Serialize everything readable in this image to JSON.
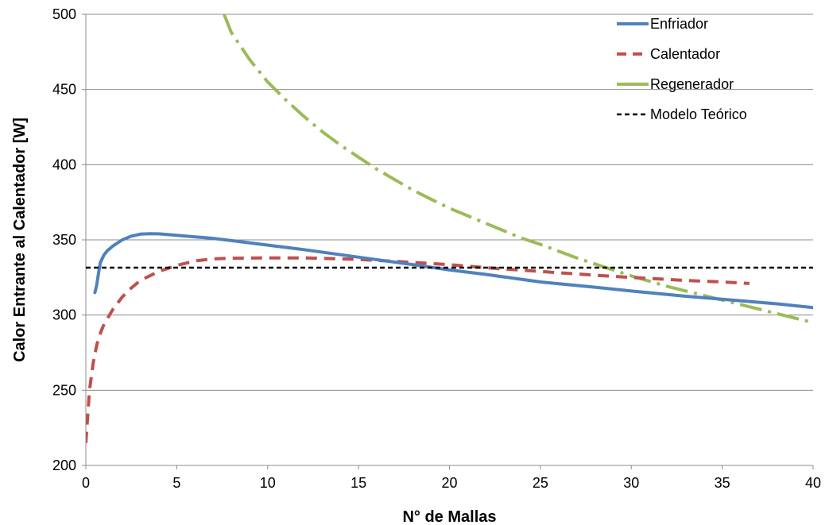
{
  "chart_data": {
    "type": "line",
    "title": "",
    "xlabel": "N° de Mallas",
    "ylabel": "Calor Entrante al Calentador [W]",
    "xlim": [
      0,
      40
    ],
    "ylim": [
      200,
      500
    ],
    "xticks": [
      0,
      5,
      10,
      15,
      20,
      25,
      30,
      35,
      40
    ],
    "yticks": [
      200,
      250,
      300,
      350,
      400,
      450,
      500
    ],
    "grid": "horizontal",
    "legend_position": "top-right",
    "series": [
      {
        "name": "Enfriador",
        "color": "#4F81BD",
        "style": "solid",
        "x": [
          0.5,
          0.6,
          0.7,
          0.8,
          1.0,
          1.2,
          1.5,
          2.0,
          2.5,
          3.0,
          3.5,
          4.0,
          5.0,
          6.0,
          7.0,
          8.0,
          10.0,
          12.0,
          15.0,
          18.0,
          20.0,
          22.0,
          25.0,
          28.0,
          30.0,
          33.0,
          35.0,
          38.0,
          40.0
        ],
        "y": [
          315,
          320,
          328,
          335,
          340,
          343,
          346,
          350,
          352.5,
          353.8,
          354.1,
          354,
          353,
          352,
          351,
          349.5,
          346.5,
          343.5,
          338.5,
          333.5,
          330,
          327,
          322,
          318.5,
          316,
          312.5,
          310.5,
          307.5,
          305
        ]
      },
      {
        "name": "Calentador",
        "color": "#C0504D",
        "style": "dashed",
        "x": [
          0.0,
          0.2,
          0.4,
          0.6,
          0.8,
          1.0,
          1.5,
          2.0,
          2.5,
          3.0,
          3.5,
          4.0,
          5.0,
          6.0,
          7.0,
          8.0,
          10.0,
          12.0,
          15.0,
          18.0,
          20.0,
          22.0,
          25.0,
          28.0,
          30.0,
          33.0,
          35.0,
          36.5
        ],
        "y": [
          215,
          250,
          268,
          280,
          288,
          294,
          304,
          312,
          318,
          323,
          326,
          329,
          333,
          336,
          337.3,
          337.8,
          338,
          338,
          337,
          335,
          333.5,
          331.5,
          329,
          326.5,
          325,
          323,
          322,
          321
        ]
      },
      {
        "name": "Regenerador",
        "color": "#9BBB59",
        "style": "dashdot",
        "x": [
          7.6,
          8.0,
          9.0,
          10.0,
          11.0,
          12.0,
          13.0,
          14.0,
          15.0,
          16.0,
          17.0,
          18.0,
          19.0,
          20.0,
          21.0,
          22.0,
          23.0,
          24.0,
          25.0,
          26.0,
          27.0,
          28.0,
          29.0,
          30.0,
          31.0,
          32.0,
          33.0,
          34.0,
          35.0,
          36.0,
          37.0,
          38.0,
          39.0,
          40.0
        ],
        "y": [
          500,
          488,
          470,
          455,
          443,
          432,
          422,
          413,
          405,
          397,
          390,
          383,
          377,
          371,
          366,
          361,
          356,
          351,
          347,
          342.5,
          338,
          334,
          330,
          326,
          322.5,
          319,
          316,
          313,
          310,
          307,
          304,
          301,
          298,
          295
        ]
      },
      {
        "name": "Modelo Teórico",
        "color": "#000000",
        "style": "dotted",
        "x": [
          0,
          40
        ],
        "y": [
          331.5,
          331.5
        ]
      }
    ]
  }
}
